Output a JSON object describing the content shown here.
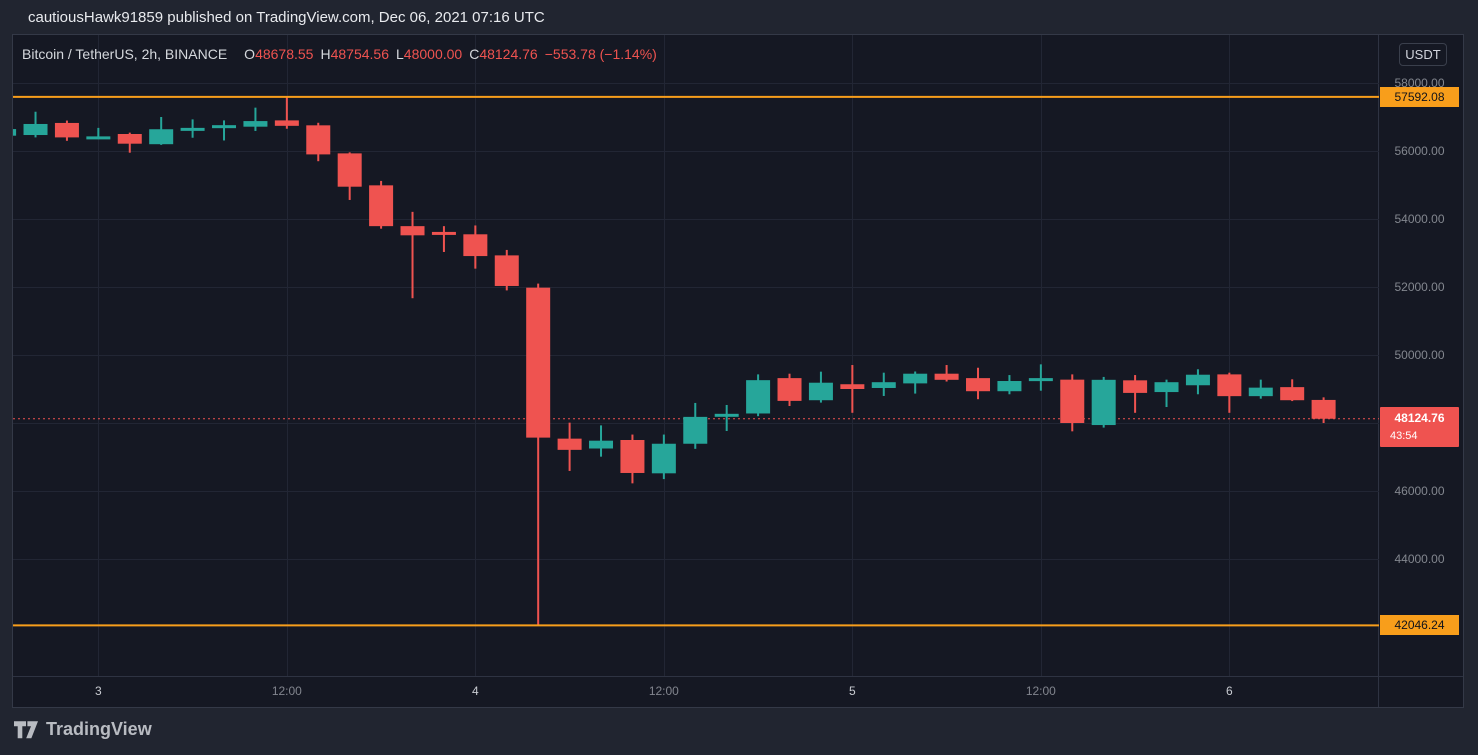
{
  "header": {
    "title": "cautiousHawk91859 published on TradingView.com, Dec 06, 2021 07:16 UTC"
  },
  "legend": {
    "symbol": "Bitcoin / TetherUS, 2h, BINANCE",
    "o_label": "O",
    "o_value": "48678.55",
    "h_label": "H",
    "h_value": "48754.56",
    "l_label": "L",
    "l_value": "48000.00",
    "c_label": "C",
    "c_value": "48124.76",
    "change": "−553.78 (−1.14%)"
  },
  "axis": {
    "currency_button": "USDT",
    "price_ticks": [
      {
        "price": 58000,
        "label": "58000.00"
      },
      {
        "price": 56000,
        "label": "56000.00"
      },
      {
        "price": 54000,
        "label": "54000.00"
      },
      {
        "price": 52000,
        "label": "52000.00"
      },
      {
        "price": 50000,
        "label": "50000.00"
      },
      {
        "price": 46000,
        "label": "46000.00"
      },
      {
        "price": 44000,
        "label": "44000.00"
      }
    ],
    "time_ticks": [
      {
        "index": 3,
        "label": "3",
        "major": true
      },
      {
        "index": 9,
        "label": "12:00",
        "major": false
      },
      {
        "index": 15,
        "label": "4",
        "major": true
      },
      {
        "index": 21,
        "label": "12:00",
        "major": false
      },
      {
        "index": 27,
        "label": "5",
        "major": true
      },
      {
        "index": 33,
        "label": "12:00",
        "major": false
      },
      {
        "index": 39,
        "label": "6",
        "major": true
      }
    ],
    "high_line_label": "57592.08",
    "low_line_label": "42046.24",
    "last_price_label": "48124.76",
    "countdown": "43:54"
  },
  "chart_data": {
    "type": "candlestick",
    "title": "Bitcoin / TetherUS, 2h, BINANCE",
    "grid_prices": [
      58000,
      56000,
      54000,
      52000,
      50000,
      48000,
      46000,
      44000
    ],
    "hlines": [
      57592.08,
      42046.24
    ],
    "last_price": 48124.76,
    "ylim": [
      42046.24,
      58000
    ],
    "candles_ohlc": [
      [
        56450,
        56660,
        56440,
        56645
      ],
      [
        56470,
        57155,
        56400,
        56795
      ],
      [
        56825,
        56895,
        56300,
        56400
      ],
      [
        56400,
        56680,
        56350,
        56430
      ],
      [
        56500,
        56540,
        55950,
        56215
      ],
      [
        56200,
        57000,
        56180,
        56640
      ],
      [
        56650,
        56930,
        56390,
        56680
      ],
      [
        56720,
        56900,
        56310,
        56760
      ],
      [
        56715,
        57275,
        56590,
        56880
      ],
      [
        56900,
        57592.08,
        56655,
        56740
      ],
      [
        56755,
        56830,
        55700,
        55900
      ],
      [
        55930,
        55960,
        54560,
        54950
      ],
      [
        54990,
        55120,
        53715,
        53790
      ],
      [
        53790,
        54210,
        51670,
        53520
      ],
      [
        53620,
        53790,
        53030,
        53580
      ],
      [
        53550,
        53810,
        52540,
        52910
      ],
      [
        52930,
        53090,
        51900,
        52030
      ],
      [
        51980,
        52100,
        42046.24,
        47570
      ],
      [
        47540,
        48010,
        46590,
        47210
      ],
      [
        47250,
        47930,
        47010,
        47480
      ],
      [
        47500,
        47660,
        46225,
        46530
      ],
      [
        46520,
        47660,
        46350,
        47390
      ],
      [
        47390,
        48590,
        47240,
        48180
      ],
      [
        48210,
        48530,
        47765,
        48270
      ],
      [
        48280,
        49430,
        48200,
        49260
      ],
      [
        49320,
        49450,
        48500,
        48650
      ],
      [
        48670,
        49510,
        48600,
        49185
      ],
      [
        49140,
        49705,
        48300,
        49000
      ],
      [
        49030,
        49480,
        48795,
        49200
      ],
      [
        49165,
        49515,
        48865,
        49450
      ],
      [
        49450,
        49705,
        49220,
        49270
      ],
      [
        49320,
        49625,
        48700,
        48935
      ],
      [
        48935,
        49410,
        48845,
        49235
      ],
      [
        49240,
        49725,
        48950,
        49320
      ],
      [
        49275,
        49430,
        47755,
        48000
      ],
      [
        47940,
        49355,
        47865,
        49270
      ],
      [
        49255,
        49410,
        48300,
        48885
      ],
      [
        48910,
        49275,
        48470,
        49200
      ],
      [
        49110,
        49580,
        48845,
        49420
      ],
      [
        49430,
        49480,
        48300,
        48790
      ],
      [
        48790,
        49275,
        48715,
        49040
      ],
      [
        49055,
        49285,
        48645,
        48670
      ],
      [
        48678.55,
        48754.56,
        48000.0,
        48124.76
      ]
    ]
  },
  "footer": {
    "brand": "TradingView"
  },
  "colors": {
    "up": "#26a69a",
    "down": "#ef5350",
    "hline": "#f89e1b",
    "last_line": "#ef5350",
    "grid": "#222634"
  }
}
